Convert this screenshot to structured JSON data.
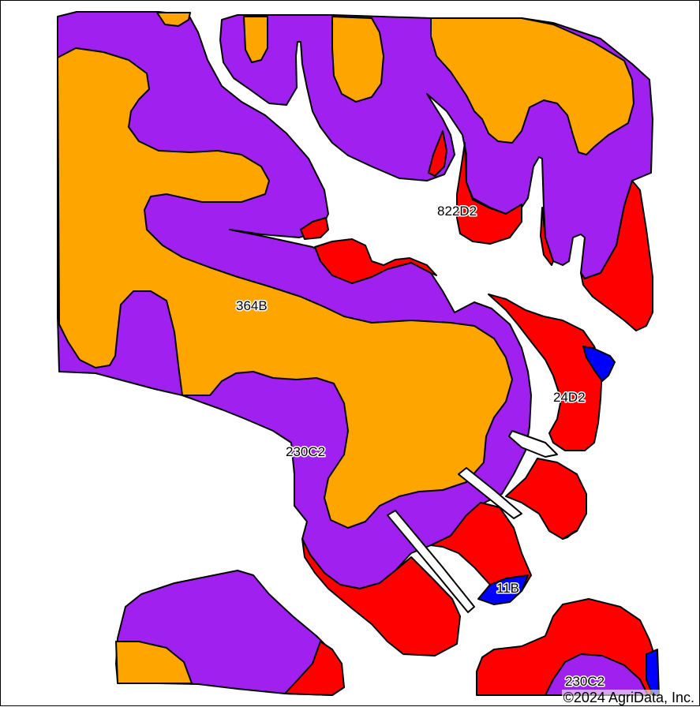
{
  "map": {
    "colors": {
      "364B": "#FFA500",
      "230C2": "#A020F0",
      "822D2": "#FF0000",
      "24D2": "#FF0000",
      "11B": "#0000FF"
    },
    "labels": {
      "l364B": "364B",
      "l230C2_main": "230C2",
      "l822D2": "822D2",
      "l24D2": "24D2",
      "l11B": "11B",
      "l230C2_south": "230C2"
    },
    "copyright": "©2024 AgriData, Inc."
  }
}
